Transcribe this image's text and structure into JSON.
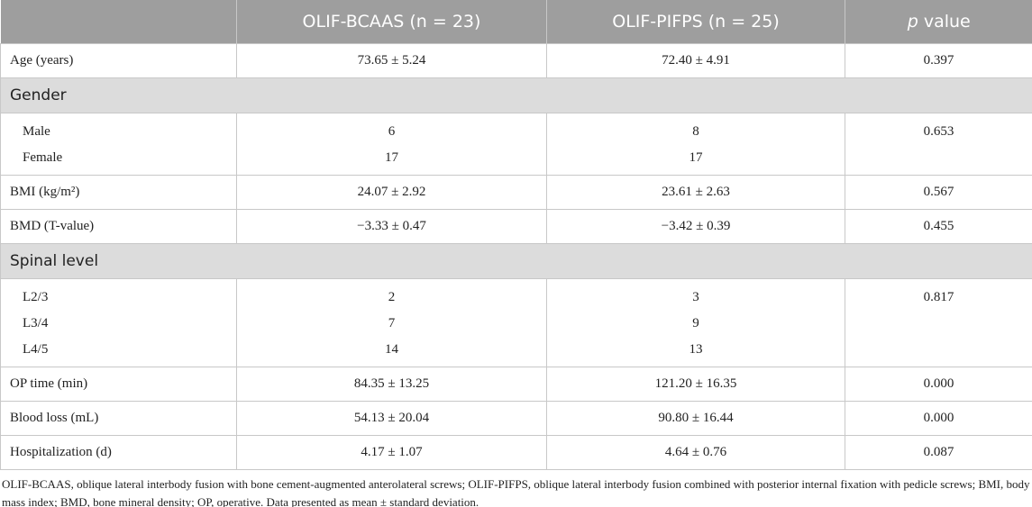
{
  "table": {
    "header": [
      "",
      "OLIF-BCAAS (n = 23)",
      "OLIF-PIFPS (n = 25)",
      {
        "italic": "p",
        "text": "value"
      }
    ],
    "rows": [
      {
        "label": "Age (years)",
        "cells": [
          "73.65 ± 5.24",
          "72.40 ± 4.91",
          "0.397"
        ]
      },
      {
        "section": "Gender"
      },
      {
        "items": [
          {
            "label": "Male",
            "cells": [
              "6",
              "8"
            ]
          },
          {
            "label": "Female",
            "cells": [
              "17",
              "17"
            ]
          }
        ],
        "p": "0.653"
      },
      {
        "label": "BMI (kg/m²)",
        "cells": [
          "24.07 ± 2.92",
          "23.61 ± 2.63",
          "0.567"
        ]
      },
      {
        "label": "BMD (T-value)",
        "cells": [
          "−3.33 ± 0.47",
          "−3.42 ± 0.39",
          "0.455"
        ]
      },
      {
        "section": "Spinal level"
      },
      {
        "items": [
          {
            "label": "L2/3",
            "cells": [
              "2",
              "3"
            ]
          },
          {
            "label": "L3/4",
            "cells": [
              "7",
              "9"
            ]
          },
          {
            "label": "L4/5",
            "cells": [
              "14",
              "13"
            ]
          }
        ],
        "p": "0.817"
      },
      {
        "label": "OP time (min)",
        "cells": [
          "84.35 ± 13.25",
          "121.20 ± 16.35",
          "0.000"
        ]
      },
      {
        "label": "Blood loss (mL)",
        "cells": [
          "54.13 ± 20.04",
          "90.80 ± 16.44",
          "0.000"
        ]
      },
      {
        "label": "Hospitalization (d)",
        "cells": [
          "4.17 ± 1.07",
          "4.64 ± 0.76",
          "0.087"
        ]
      }
    ],
    "footnote": "OLIF-BCAAS, oblique lateral interbody fusion with bone cement-augmented anterolateral screws; OLIF-PIFPS, oblique lateral interbody fusion combined with posterior internal fixation with pedicle screws; BMI, body mass index; BMD, bone mineral density; OP, operative. Data presented as mean ± standard deviation."
  }
}
